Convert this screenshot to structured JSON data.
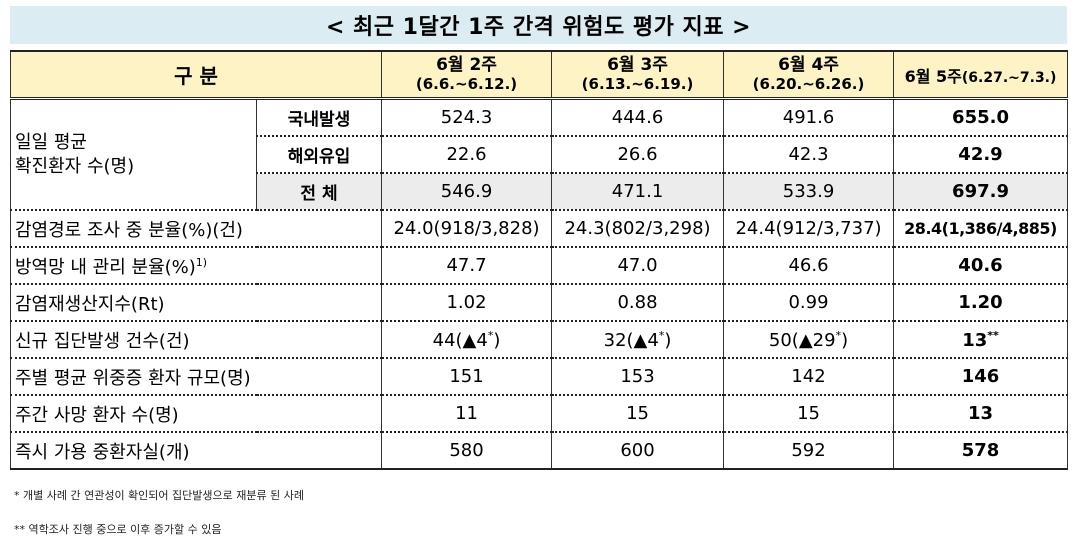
{
  "title": "< 최근 1달간 1주 간격 위험도 평가 지표 >",
  "header": {
    "category": "구 분",
    "weeks": [
      {
        "label": "6월 2주",
        "dates": "(6.6.~6.12.)"
      },
      {
        "label": "6월 3주",
        "dates": "(6.13.~6.19.)"
      },
      {
        "label": "6월 4주",
        "dates": "(6.20.~6.26.)"
      },
      {
        "label": "6월 5주",
        "dates": "(6.27.~7.3.)"
      }
    ]
  },
  "daily_group_label": "일일 평균\n확진환자 수(명)",
  "daily_rows": [
    {
      "sub": "국내발생",
      "values": [
        "524.3",
        "444.6",
        "491.6",
        "655.0"
      ]
    },
    {
      "sub": "해외유입",
      "values": [
        "22.6",
        "26.6",
        "42.3",
        "42.9"
      ]
    },
    {
      "sub": "전 체",
      "values": [
        "546.9",
        "471.1",
        "533.9",
        "697.9"
      ]
    }
  ],
  "rows": [
    {
      "label": "감염경로 조사 중 분율(%)(건)",
      "values": [
        "24.0(918/3,828)",
        "24.3(802/3,298)",
        "24.4(912/3,737)",
        "28.4(1,386/4,885)"
      ]
    },
    {
      "label": "방역망 내 관리 분율(%)",
      "label_sup": "1)",
      "values": [
        "47.7",
        "47.0",
        "46.6",
        "40.6"
      ]
    },
    {
      "label": "감염재생산지수(Rt)",
      "values": [
        "1.02",
        "0.88",
        "0.99",
        "1.20"
      ]
    },
    {
      "label": "신규 집단발생 건수(건)",
      "values": [
        "44(▲4",
        "32(▲4",
        "50(▲29",
        "13"
      ],
      "sups": [
        "*",
        "*",
        "*",
        "**"
      ],
      "closers": [
        ")",
        ")",
        ")",
        ""
      ]
    },
    {
      "label": "주별 평균 위중증 환자 규모(명)",
      "values": [
        "151",
        "153",
        "142",
        "146"
      ]
    },
    {
      "label": "주간 사망 환자 수(명)",
      "values": [
        "11",
        "15",
        "15",
        "13"
      ]
    },
    {
      "label": "즉시 가용 중환자실(개)",
      "values": [
        "580",
        "600",
        "592",
        "578"
      ]
    }
  ],
  "footnotes": [
    "* 개별 사례 간 연관성이 확인되어 집단발생으로 재분류 된 사례",
    "** 역학조사 진행 중으로 이후 증가할 수 있음"
  ]
}
